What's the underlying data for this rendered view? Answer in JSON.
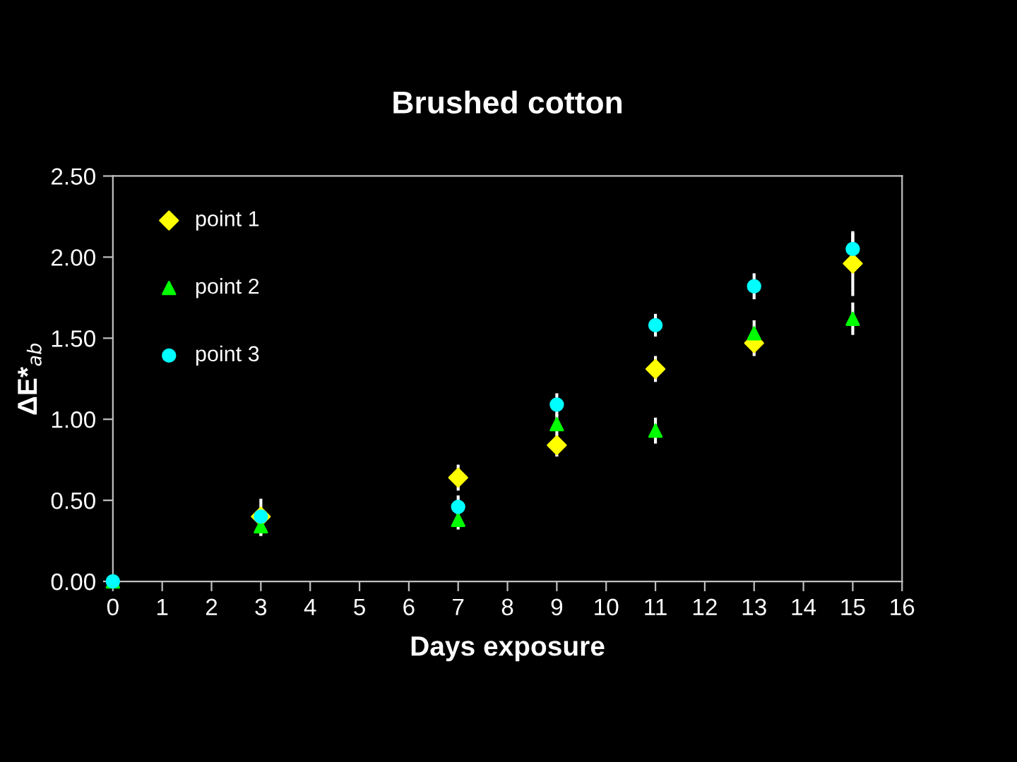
{
  "chart_data": {
    "type": "scatter",
    "title": "Brushed cotton",
    "xlabel": "Days exposure",
    "ylabel": "ΔE*$_{ab}$",
    "x": [
      0,
      3,
      7,
      9,
      11,
      13,
      15
    ],
    "series": [
      {
        "name": "point 1",
        "color": "#ffff00",
        "marker": "diamond",
        "values": [
          null,
          0.4,
          0.64,
          0.84,
          1.31,
          1.47,
          1.96
        ],
        "errors": [
          null,
          0.05,
          0.08,
          0.07,
          0.08,
          0.08,
          0.2
        ]
      },
      {
        "name": "point 2",
        "color": "#00ff00",
        "marker": "triangle",
        "values": [
          0,
          0.34,
          0.38,
          0.97,
          0.93,
          1.53,
          1.62
        ],
        "errors": [
          null,
          0.06,
          0.06,
          0.06,
          0.08,
          0.08,
          0.1
        ]
      },
      {
        "name": "point 3",
        "color": "#00ffff",
        "marker": "circle",
        "values": [
          0,
          0.4,
          0.46,
          1.09,
          1.58,
          1.82,
          2.05
        ],
        "errors": [
          null,
          0.11,
          0.07,
          0.07,
          0.07,
          0.08,
          0.1
        ]
      }
    ],
    "xlim": [
      0,
      16
    ],
    "xticks": [
      0,
      1,
      2,
      3,
      4,
      5,
      6,
      7,
      8,
      9,
      10,
      11,
      12,
      13,
      14,
      15,
      16
    ],
    "ylim": [
      0,
      2.5
    ],
    "yticks": [
      {
        "value": 0,
        "label": "0.00"
      },
      {
        "value": 0.5,
        "label": "0.50"
      },
      {
        "value": 1,
        "label": "1.00"
      },
      {
        "value": 1.5,
        "label": "1.50"
      },
      {
        "value": 2,
        "label": "2.00"
      },
      {
        "value": 2.5,
        "label": "2.50"
      }
    ],
    "grid": false,
    "legend": "top left"
  }
}
